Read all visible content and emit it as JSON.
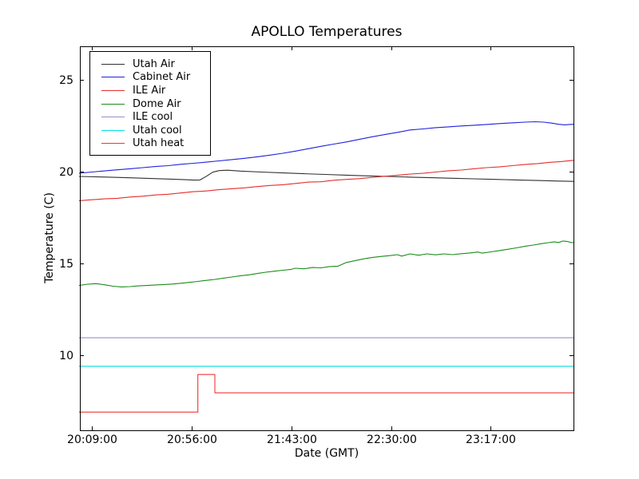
{
  "chart_data": {
    "type": "line",
    "title": "APOLLO Temperatures",
    "xlabel": "Date (GMT)",
    "ylabel": "Temperature (C)",
    "x_unit": "minutes after 20:09:00 GMT",
    "x_range": [
      -5.6,
      227
    ],
    "y_range": [
      5.91,
      26.83
    ],
    "grid": false,
    "legend_position": "upper left",
    "frame_color": "#000000",
    "x_ticks": [
      {
        "t": 0,
        "label": "20:09:00"
      },
      {
        "t": 47,
        "label": "20:56:00"
      },
      {
        "t": 94,
        "label": "21:43:00"
      },
      {
        "t": 141,
        "label": "22:30:00"
      },
      {
        "t": 188,
        "label": "23:17:00"
      }
    ],
    "y_ticks": [
      {
        "v": 10,
        "label": "10"
      },
      {
        "v": 15,
        "label": "15"
      },
      {
        "v": 20,
        "label": "20"
      },
      {
        "v": 25,
        "label": "25"
      }
    ],
    "series": [
      {
        "name": "Utah Air",
        "color": "#303030",
        "points": [
          [
            -6,
            19.74
          ],
          [
            5,
            19.71
          ],
          [
            15,
            19.68
          ],
          [
            25,
            19.64
          ],
          [
            35,
            19.6
          ],
          [
            43,
            19.57
          ],
          [
            48,
            19.54
          ],
          [
            51,
            19.55
          ],
          [
            54,
            19.75
          ],
          [
            57,
            19.97
          ],
          [
            60,
            20.06
          ],
          [
            64,
            20.08
          ],
          [
            70,
            20.03
          ],
          [
            80,
            19.98
          ],
          [
            90,
            19.93
          ],
          [
            100,
            19.89
          ],
          [
            110,
            19.85
          ],
          [
            120,
            19.81
          ],
          [
            130,
            19.77
          ],
          [
            140,
            19.74
          ],
          [
            150,
            19.7
          ],
          [
            160,
            19.67
          ],
          [
            170,
            19.64
          ],
          [
            180,
            19.61
          ],
          [
            190,
            19.58
          ],
          [
            200,
            19.55
          ],
          [
            210,
            19.52
          ],
          [
            220,
            19.49
          ],
          [
            227,
            19.47
          ]
        ]
      },
      {
        "name": "Cabinet Air",
        "color": "#2020dd",
        "points": [
          [
            -6,
            19.92
          ],
          [
            0,
            19.98
          ],
          [
            6,
            20.04
          ],
          [
            12,
            20.1
          ],
          [
            18,
            20.16
          ],
          [
            24,
            20.22
          ],
          [
            30,
            20.28
          ],
          [
            36,
            20.33
          ],
          [
            42,
            20.4
          ],
          [
            48,
            20.46
          ],
          [
            54,
            20.52
          ],
          [
            60,
            20.59
          ],
          [
            66,
            20.66
          ],
          [
            72,
            20.73
          ],
          [
            78,
            20.81
          ],
          [
            84,
            20.9
          ],
          [
            90,
            21.0
          ],
          [
            96,
            21.12
          ],
          [
            102,
            21.25
          ],
          [
            108,
            21.38
          ],
          [
            114,
            21.5
          ],
          [
            120,
            21.62
          ],
          [
            126,
            21.76
          ],
          [
            132,
            21.9
          ],
          [
            138,
            22.02
          ],
          [
            144,
            22.14
          ],
          [
            150,
            22.27
          ],
          [
            156,
            22.33
          ],
          [
            162,
            22.4
          ],
          [
            168,
            22.44
          ],
          [
            174,
            22.49
          ],
          [
            180,
            22.53
          ],
          [
            186,
            22.57
          ],
          [
            192,
            22.62
          ],
          [
            198,
            22.66
          ],
          [
            204,
            22.7
          ],
          [
            209,
            22.72
          ],
          [
            213,
            22.7
          ],
          [
            217,
            22.64
          ],
          [
            220,
            22.58
          ],
          [
            223,
            22.55
          ],
          [
            225,
            22.57
          ],
          [
            227,
            22.58
          ]
        ]
      },
      {
        "name": "ILE Air",
        "color": "#e62e2e",
        "points": [
          [
            -6,
            18.42
          ],
          [
            0,
            18.47
          ],
          [
            6,
            18.52
          ],
          [
            12,
            18.55
          ],
          [
            18,
            18.62
          ],
          [
            24,
            18.66
          ],
          [
            30,
            18.73
          ],
          [
            36,
            18.77
          ],
          [
            42,
            18.84
          ],
          [
            48,
            18.91
          ],
          [
            54,
            18.95
          ],
          [
            60,
            19.02
          ],
          [
            66,
            19.07
          ],
          [
            72,
            19.12
          ],
          [
            78,
            19.19
          ],
          [
            84,
            19.25
          ],
          [
            90,
            19.29
          ],
          [
            96,
            19.36
          ],
          [
            102,
            19.43
          ],
          [
            108,
            19.45
          ],
          [
            114,
            19.53
          ],
          [
            120,
            19.58
          ],
          [
            126,
            19.62
          ],
          [
            132,
            19.69
          ],
          [
            138,
            19.75
          ],
          [
            144,
            19.8
          ],
          [
            150,
            19.87
          ],
          [
            156,
            19.91
          ],
          [
            162,
            19.98
          ],
          [
            168,
            20.05
          ],
          [
            174,
            20.09
          ],
          [
            180,
            20.16
          ],
          [
            186,
            20.22
          ],
          [
            192,
            20.26
          ],
          [
            198,
            20.33
          ],
          [
            204,
            20.39
          ],
          [
            210,
            20.44
          ],
          [
            216,
            20.51
          ],
          [
            221,
            20.55
          ],
          [
            227,
            20.62
          ]
        ]
      },
      {
        "name": "Dome Air",
        "color": "#1a8c1a",
        "points": [
          [
            -6,
            13.8
          ],
          [
            -2,
            13.87
          ],
          [
            2,
            13.9
          ],
          [
            6,
            13.84
          ],
          [
            10,
            13.76
          ],
          [
            14,
            13.72
          ],
          [
            18,
            13.74
          ],
          [
            22,
            13.78
          ],
          [
            26,
            13.8
          ],
          [
            30,
            13.83
          ],
          [
            34,
            13.85
          ],
          [
            38,
            13.88
          ],
          [
            42,
            13.92
          ],
          [
            46,
            13.97
          ],
          [
            50,
            14.02
          ],
          [
            54,
            14.08
          ],
          [
            58,
            14.13
          ],
          [
            62,
            14.2
          ],
          [
            66,
            14.26
          ],
          [
            70,
            14.33
          ],
          [
            74,
            14.38
          ],
          [
            78,
            14.45
          ],
          [
            82,
            14.52
          ],
          [
            86,
            14.58
          ],
          [
            90,
            14.63
          ],
          [
            94,
            14.68
          ],
          [
            96,
            14.74
          ],
          [
            100,
            14.71
          ],
          [
            104,
            14.78
          ],
          [
            108,
            14.76
          ],
          [
            112,
            14.83
          ],
          [
            116,
            14.85
          ],
          [
            120,
            15.05
          ],
          [
            124,
            15.15
          ],
          [
            128,
            15.25
          ],
          [
            132,
            15.32
          ],
          [
            136,
            15.38
          ],
          [
            140,
            15.42
          ],
          [
            144,
            15.48
          ],
          [
            146,
            15.4
          ],
          [
            150,
            15.52
          ],
          [
            154,
            15.45
          ],
          [
            158,
            15.52
          ],
          [
            162,
            15.47
          ],
          [
            166,
            15.52
          ],
          [
            170,
            15.48
          ],
          [
            174,
            15.53
          ],
          [
            178,
            15.57
          ],
          [
            182,
            15.62
          ],
          [
            184,
            15.56
          ],
          [
            188,
            15.63
          ],
          [
            192,
            15.7
          ],
          [
            196,
            15.77
          ],
          [
            200,
            15.85
          ],
          [
            204,
            15.93
          ],
          [
            208,
            16.0
          ],
          [
            212,
            16.08
          ],
          [
            215,
            16.13
          ],
          [
            218,
            16.18
          ],
          [
            220,
            16.14
          ],
          [
            222,
            16.22
          ],
          [
            224,
            16.2
          ],
          [
            226,
            16.14
          ],
          [
            227,
            16.13
          ]
        ]
      },
      {
        "name": "ILE cool",
        "color": "#9191c8",
        "points": [
          [
            -6,
            10.95
          ],
          [
            227,
            10.95
          ]
        ]
      },
      {
        "name": "Utah cool",
        "color": "#00e0e0",
        "points": [
          [
            -6,
            9.4
          ],
          [
            227,
            9.4
          ]
        ]
      },
      {
        "name": "Utah heat",
        "color": "#f03434",
        "points": [
          [
            -6,
            6.9
          ],
          [
            50,
            6.9
          ],
          [
            50,
            8.95
          ],
          [
            58,
            8.95
          ],
          [
            58,
            7.95
          ],
          [
            227,
            7.95
          ]
        ]
      }
    ]
  },
  "colors": {
    "background": "#ffffff",
    "text": "#000000"
  }
}
